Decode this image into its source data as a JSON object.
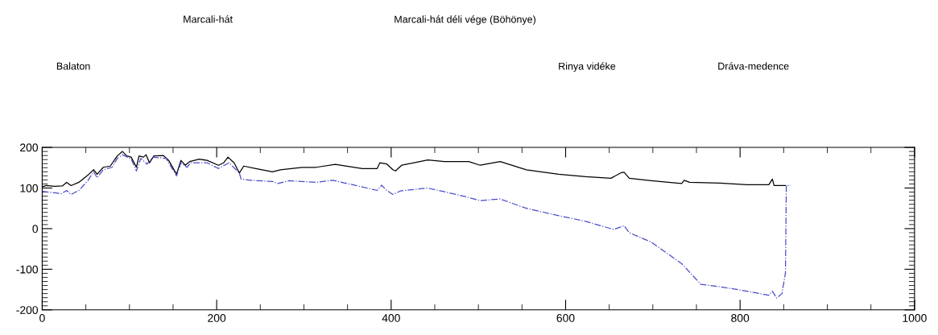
{
  "chart_data": {
    "type": "line",
    "annotations": [
      "Marcali-hát",
      "Marcali-hát déli vége (Böhönye)",
      "Balaton",
      "Rinya vidéke",
      "Dráva-medence"
    ],
    "xlim": [
      0,
      1000
    ],
    "xticks": [
      0,
      200,
      400,
      600,
      800,
      1000
    ],
    "ylim": [
      -200,
      200
    ],
    "yticks": [
      -200,
      -100,
      0,
      100,
      200
    ],
    "tick_labels": "xy",
    "grid": false,
    "legend": false,
    "marker": "none",
    "series": [
      {
        "color": "#000000",
        "line_style": "solid",
        "x": [
          0,
          5,
          14,
          23,
          28,
          33,
          42,
          52,
          59,
          63,
          70,
          78,
          86,
          92,
          97,
          102,
          108,
          111,
          116,
          119,
          123,
          128,
          139,
          145,
          154,
          159,
          164,
          169,
          180,
          189,
          202,
          208,
          213,
          220,
          226,
          231,
          245,
          264,
          273,
          298,
          314,
          336,
          367,
          384,
          387,
          395,
          402,
          405,
          412,
          442,
          461,
          489,
          502,
          525,
          555,
          592,
          623,
          652,
          664,
          667,
          673,
          698,
          733,
          736,
          742,
          777,
          808,
          833,
          837,
          839,
          852
        ],
        "values": [
          103,
          106,
          104,
          105,
          114,
          106,
          114,
          131,
          145,
          134,
          151,
          154,
          179,
          190,
          179,
          176,
          151,
          179,
          176,
          182,
          162,
          179,
          180,
          168,
          134,
          168,
          156,
          165,
          171,
          168,
          156,
          162,
          176,
          162,
          137,
          154,
          148,
          140,
          145,
          151,
          151,
          158,
          148,
          148,
          162,
          159,
          145,
          142,
          156,
          169,
          165,
          165,
          156,
          165,
          145,
          134,
          128,
          124,
          138,
          139,
          124,
          118,
          111,
          119,
          114,
          112,
          108,
          108,
          122,
          106,
          106
        ]
      },
      {
        "color": "#4b4bc8",
        "line_style": "dashed",
        "x": [
          0,
          11,
          22,
          28,
          33,
          42,
          52,
          59,
          63,
          70,
          80,
          86,
          92,
          102,
          108,
          113,
          120,
          127,
          142,
          154,
          159,
          166,
          170,
          189,
          202,
          214,
          226,
          228,
          239,
          264,
          270,
          283,
          314,
          333,
          358,
          384,
          389,
          395,
          402,
          411,
          442,
          483,
          502,
          525,
          555,
          592,
          623,
          655,
          667,
          673,
          698,
          733,
          749,
          755,
          777,
          808,
          833,
          837,
          842,
          848,
          852,
          853,
          858
        ],
        "values": [
          92,
          89,
          86,
          94,
          84,
          94,
          117,
          140,
          125,
          145,
          151,
          173,
          182,
          171,
          142,
          173,
          159,
          176,
          173,
          130,
          162,
          151,
          162,
          162,
          148,
          162,
          137,
          122,
          119,
          116,
          111,
          118,
          114,
          119,
          107,
          94,
          107,
          94,
          84,
          93,
          100,
          80,
          69,
          73,
          50,
          32,
          18,
          -2,
          7,
          -10,
          -33,
          -86,
          -123,
          -137,
          -143,
          -154,
          -164,
          -154,
          -171,
          -160,
          -109,
          106,
          106
        ]
      }
    ]
  }
}
